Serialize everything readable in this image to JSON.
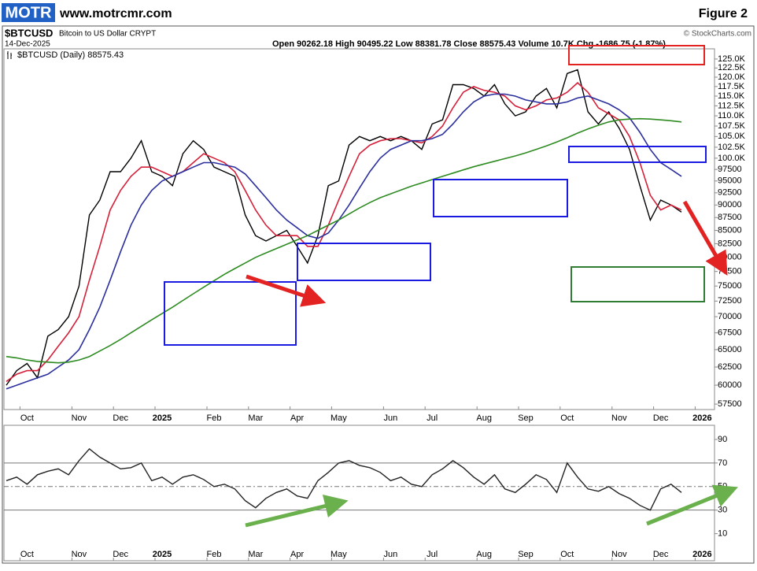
{
  "header": {
    "logo": "MOTR",
    "site": "www.motrcmr.com",
    "figure": "Figure 2"
  },
  "chart_data": [
    {
      "type": "line",
      "title": "$BTCUSD",
      "subtitle": "Bitcoin to US Dollar CRYPT",
      "date": "14-Dec-2025",
      "quote": "Open 90262.18 High 90495.22 Low 88381.78 Close 88575.43 Volume 10.7K Chg -1686.75 (-1.87%)",
      "source": "© StockCharts.com",
      "log_scale": true,
      "categories": [
        null,
        null,
        "Oct",
        null,
        null,
        null,
        null,
        "Nov",
        null,
        null,
        null,
        "Dec",
        null,
        null,
        null,
        "2025",
        null,
        null,
        null,
        null,
        "Feb",
        null,
        null,
        null,
        "Mar",
        null,
        null,
        null,
        "Apr",
        null,
        null,
        null,
        "May",
        null,
        null,
        null,
        null,
        "Jun",
        null,
        null,
        null,
        "Jul",
        null,
        null,
        null,
        null,
        "Aug",
        null,
        null,
        null,
        "Sep",
        null,
        null,
        null,
        "Oct",
        null,
        null,
        null,
        null,
        "Nov",
        null,
        null,
        null,
        "Dec",
        null,
        null,
        null,
        "2026"
      ],
      "series": [
        {
          "name": "$BTCUSD (Daily) 88575.43",
          "color": "#000000",
          "values": [
            60000,
            62000,
            63000,
            61000,
            67000,
            68000,
            70000,
            75000,
            88000,
            91000,
            97000,
            97000,
            100000,
            104000,
            97000,
            96000,
            94000,
            101000,
            104000,
            102000,
            98000,
            97000,
            96000,
            88000,
            84000,
            83000,
            84000,
            85000,
            82000,
            79000,
            84000,
            94000,
            95000,
            103000,
            105000,
            104000,
            105000,
            104000,
            105000,
            104000,
            102000,
            108000,
            109000,
            118000,
            118000,
            117000,
            115000,
            118000,
            113000,
            110000,
            111000,
            115000,
            117000,
            112000,
            121000,
            122000,
            111000,
            108000,
            111000,
            107000,
            102000,
            94000,
            87000,
            91000,
            90000,
            88575.43,
            null,
            null
          ]
        },
        {
          "color": "#d6203a",
          "values": [
            60500,
            61500,
            62000,
            62000,
            63500,
            65500,
            67500,
            70000,
            76000,
            82000,
            89000,
            93000,
            96000,
            98000,
            98000,
            97000,
            96000,
            97000,
            99000,
            101000,
            100000,
            99000,
            97000,
            93000,
            89000,
            86000,
            84000,
            84000,
            84000,
            82000,
            82000,
            86000,
            91000,
            96000,
            101000,
            103000,
            104000,
            104500,
            104500,
            104000,
            103500,
            105000,
            107500,
            112000,
            116000,
            117500,
            116500,
            116000,
            115000,
            112500,
            111500,
            112500,
            114000,
            114500,
            116000,
            118500,
            116000,
            112000,
            110500,
            109000,
            105000,
            99000,
            92000,
            89000,
            90000,
            89000,
            null,
            null
          ]
        },
        {
          "color": "#2b2f9e",
          "values": [
            59500,
            60000,
            60500,
            61000,
            61500,
            62500,
            63500,
            65000,
            68000,
            71500,
            76000,
            81000,
            86000,
            90000,
            93000,
            95000,
            96000,
            97000,
            98000,
            99000,
            99000,
            98500,
            98000,
            96500,
            94000,
            91500,
            89000,
            87000,
            85500,
            84000,
            83500,
            84500,
            87000,
            90000,
            93500,
            97000,
            100000,
            102000,
            103000,
            104000,
            104000,
            104500,
            105500,
            108000,
            111000,
            113500,
            115000,
            115500,
            115500,
            115000,
            114000,
            113500,
            113000,
            113000,
            113500,
            114500,
            115000,
            114000,
            113000,
            111500,
            109500,
            106000,
            102000,
            99000,
            97500,
            96000,
            null,
            null
          ]
        },
        {
          "color": "#2e8b22",
          "values": [
            64000,
            63800,
            63500,
            63300,
            63200,
            63100,
            63200,
            63500,
            64000,
            64800,
            65600,
            66500,
            67500,
            68500,
            69500,
            70500,
            71500,
            72600,
            73700,
            74800,
            75900,
            77000,
            78000,
            79000,
            80000,
            80800,
            81600,
            82400,
            83200,
            84000,
            85000,
            86000,
            87000,
            88200,
            89400,
            90500,
            91500,
            92300,
            93100,
            93900,
            94600,
            95300,
            96000,
            96700,
            97400,
            98100,
            98700,
            99300,
            99900,
            100500,
            101200,
            102000,
            102800,
            103700,
            104700,
            105800,
            106800,
            107700,
            108500,
            109000,
            109200,
            109300,
            109200,
            109000,
            108800,
            108500,
            null,
            null
          ]
        }
      ],
      "ylim": [
        56800,
        127900
      ],
      "yticks": [
        57500,
        60000,
        62500,
        65000,
        67500,
        70000,
        72500,
        75000,
        77500,
        80000,
        82500,
        85000,
        87500,
        90000,
        92500,
        95000,
        97500,
        {
          "value": 100000,
          "label": "100.0K"
        },
        {
          "value": 102500,
          "label": "102.5K"
        },
        {
          "value": 105000,
          "label": "105.0K"
        },
        {
          "value": 107500,
          "label": "107.5K"
        },
        {
          "value": 110000,
          "label": "110.0K"
        },
        {
          "value": 112500,
          "label": "112.5K"
        },
        {
          "value": 115000,
          "label": "115.0K"
        },
        {
          "value": 117500,
          "label": "117.5K"
        },
        {
          "value": 120000,
          "label": "120.0K"
        },
        {
          "value": 122500,
          "label": "122.5K"
        },
        {
          "value": 125000,
          "label": "125.0K"
        }
      ]
    },
    {
      "type": "line",
      "series": [
        {
          "color": "#222222",
          "values": [
            55,
            58,
            52,
            60,
            63,
            65,
            60,
            72,
            82,
            75,
            70,
            65,
            66,
            70,
            55,
            58,
            52,
            58,
            60,
            56,
            50,
            52,
            48,
            38,
            32,
            40,
            45,
            48,
            42,
            40,
            55,
            62,
            70,
            72,
            68,
            66,
            62,
            55,
            58,
            52,
            50,
            60,
            65,
            72,
            66,
            58,
            52,
            60,
            48,
            45,
            52,
            60,
            56,
            45,
            70,
            58,
            48,
            46,
            50,
            44,
            40,
            34,
            30,
            48,
            52,
            45,
            null,
            null
          ]
        }
      ],
      "ylim": [
        -13,
        102
      ],
      "yticks": [
        10,
        30,
        50,
        70,
        90
      ]
    }
  ]
}
